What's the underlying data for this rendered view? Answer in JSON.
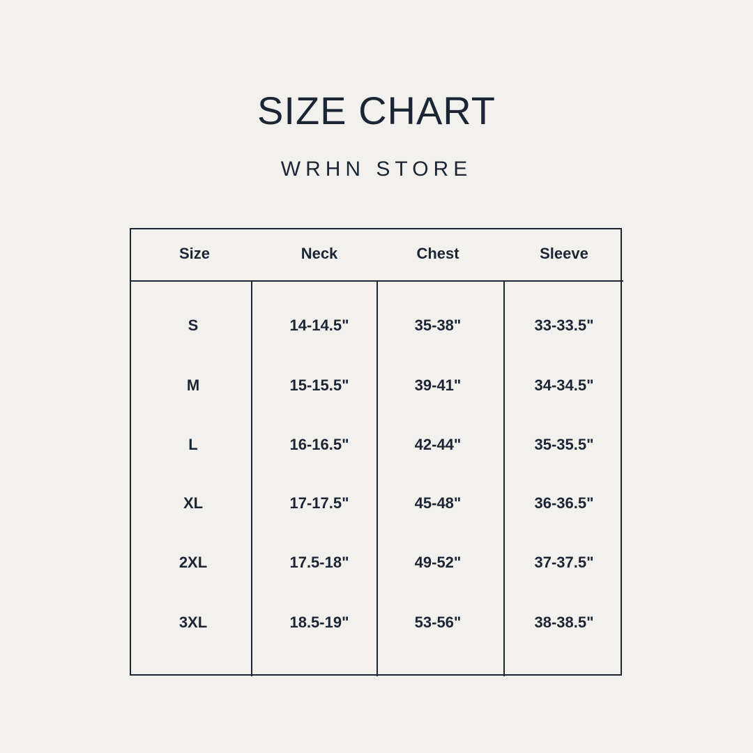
{
  "title": "SIZE CHART",
  "subtitle": "WRHN STORE",
  "table": {
    "headers": [
      "Size",
      "Neck",
      "Chest",
      "Sleeve"
    ],
    "rows": [
      [
        "S",
        "14-14.5\"",
        "35-38\"",
        "33-33.5\""
      ],
      [
        "M",
        "15-15.5\"",
        "39-41\"",
        "34-34.5\""
      ],
      [
        "L",
        "16-16.5\"",
        "42-44\"",
        "35-35.5\""
      ],
      [
        "XL",
        "17-17.5\"",
        "45-48\"",
        "36-36.5\""
      ],
      [
        "2XL",
        "17.5-18\"",
        "49-52\"",
        "37-37.5\""
      ],
      [
        "3XL",
        "18.5-19\"",
        "53-56\"",
        "38-38.5\""
      ]
    ]
  },
  "colors": {
    "background": "#f2f1ee",
    "text": "#1b2534"
  }
}
